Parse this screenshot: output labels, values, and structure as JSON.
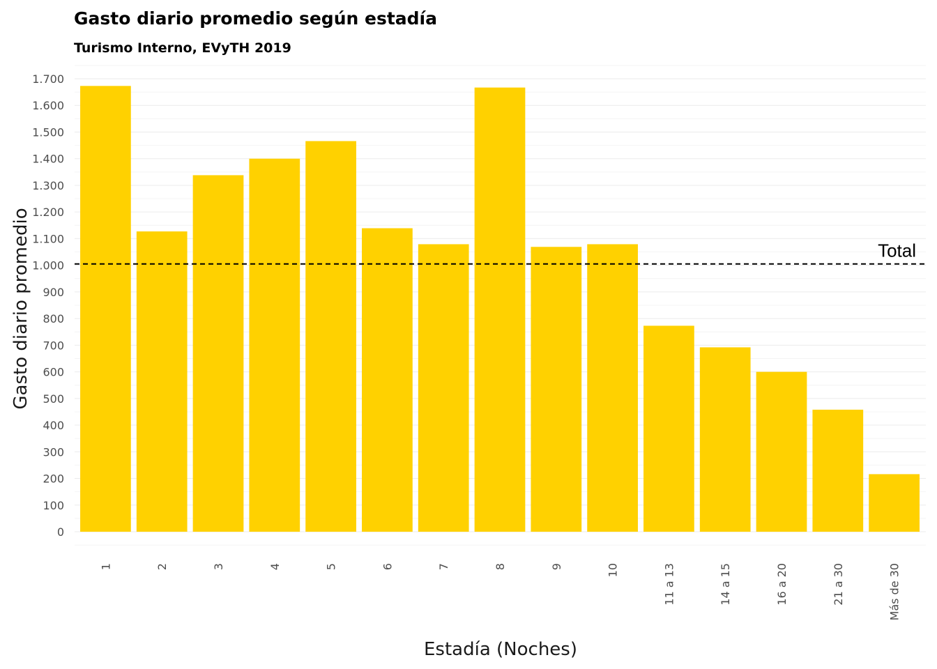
{
  "chart_data": {
    "type": "bar",
    "title": "Gasto diario promedio según estadía",
    "subtitle": "Turismo Interno, EVyTH 2019",
    "xlabel": "Estadía (Noches)",
    "ylabel": "Gasto diario promedio",
    "categories": [
      "1",
      "2",
      "3",
      "4",
      "5",
      "6",
      "7",
      "8",
      "9",
      "10",
      "11 a 13",
      "14 a 15",
      "16 a 20",
      "21 a 30",
      "Más de 30"
    ],
    "values": [
      1673,
      1127,
      1338,
      1400,
      1466,
      1139,
      1079,
      1667,
      1069,
      1079,
      773,
      692,
      600,
      458,
      216
    ],
    "ylim": [
      0,
      1700
    ],
    "yticks": [
      0,
      100,
      200,
      300,
      400,
      500,
      600,
      700,
      800,
      900,
      1000,
      1100,
      1200,
      1300,
      1400,
      1500,
      1600,
      1700
    ],
    "ytick_labels": [
      "0",
      "100",
      "200",
      "300",
      "400",
      "500",
      "600",
      "700",
      "800",
      "900",
      "1.000",
      "1.100",
      "1.200",
      "1.300",
      "1.400",
      "1.500",
      "1.600",
      "1.700"
    ],
    "bar_color": "#FFD100",
    "grid": true,
    "legend": "none",
    "reference_line": {
      "label": "Total",
      "value": 1005,
      "style": "dashed",
      "color": "#000000"
    }
  }
}
